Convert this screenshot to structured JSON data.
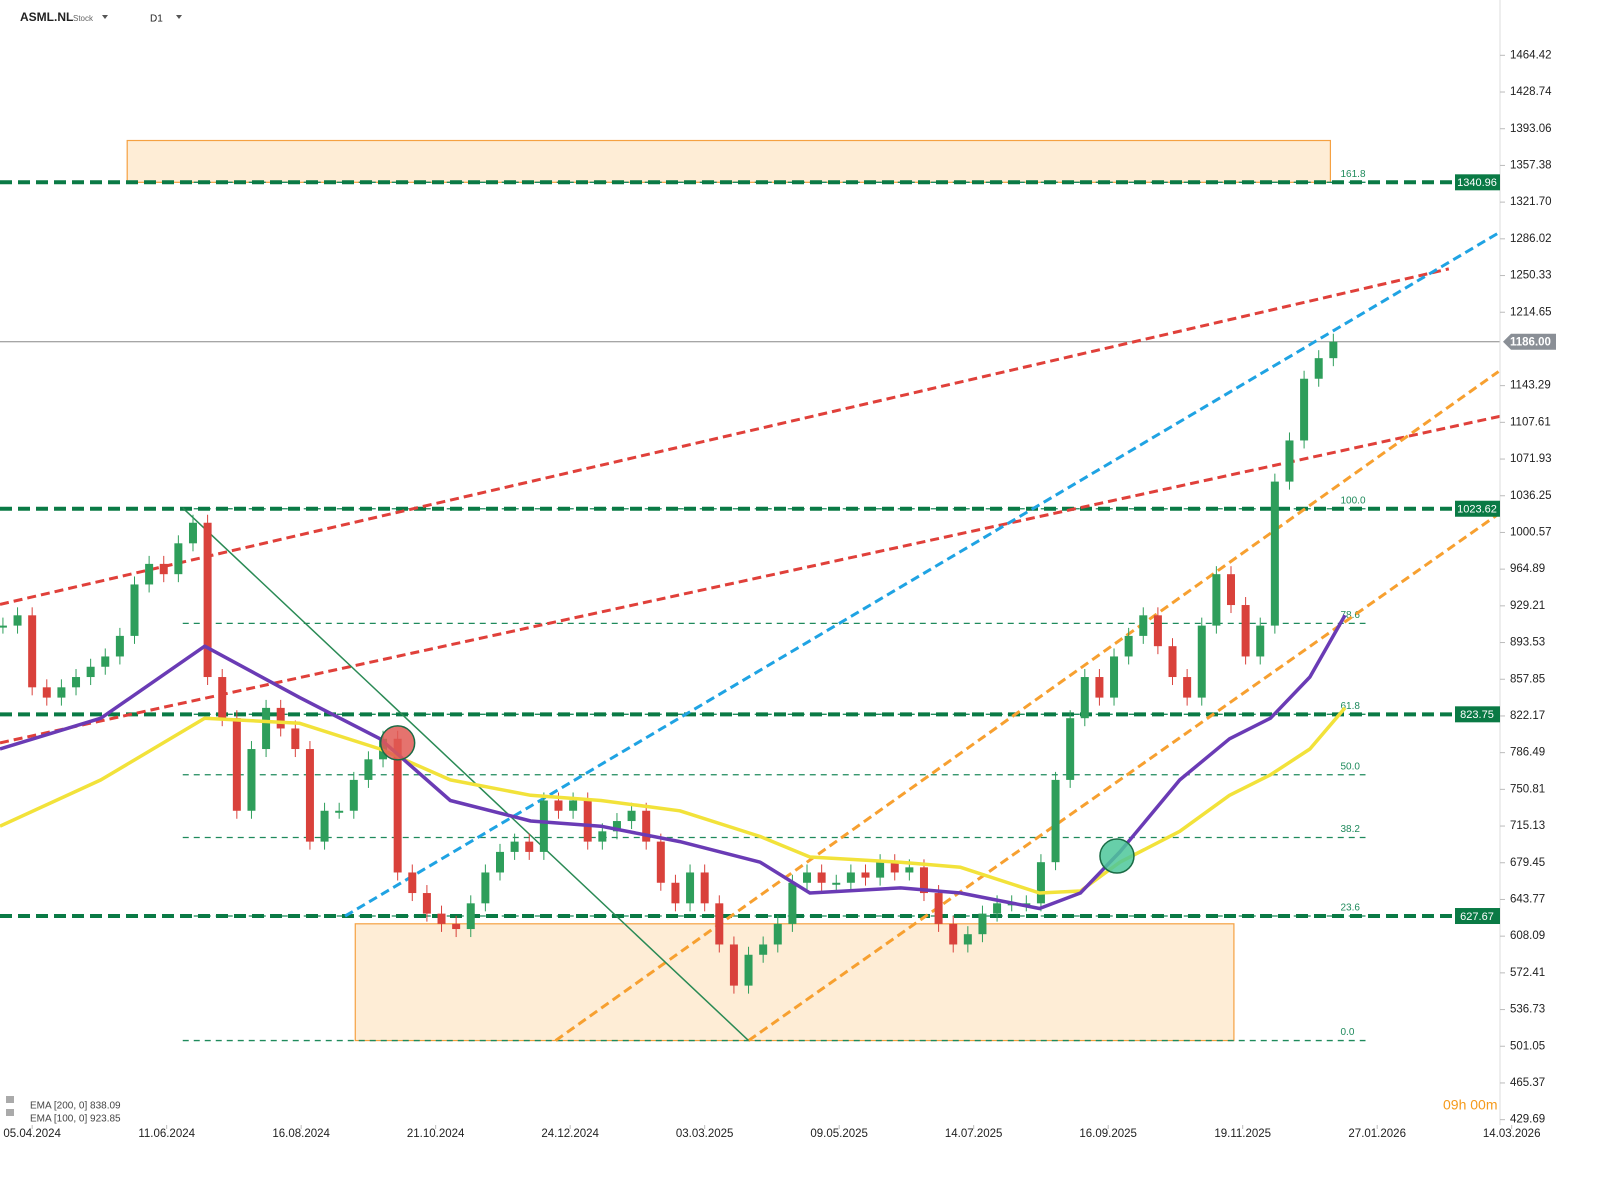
{
  "header": {
    "symbol": "ASML.NL",
    "kind": "Stock",
    "timeframe": "D1"
  },
  "countdown": "09h 00m",
  "chart_data": {
    "type": "candlestick",
    "x": [
      -2,
      -1,
      0,
      1,
      2,
      3,
      4,
      5,
      6,
      7,
      8,
      9,
      10,
      11,
      12,
      13,
      14,
      15,
      16,
      17,
      18,
      19,
      20,
      21,
      22,
      23,
      24,
      25,
      26,
      27,
      28,
      29,
      30,
      31,
      32,
      33,
      34,
      35,
      36,
      37,
      38,
      39,
      40,
      41,
      42,
      43,
      44,
      45,
      46,
      47,
      48,
      49,
      50,
      51,
      52,
      53,
      54,
      55,
      56,
      57,
      58,
      59,
      60,
      61,
      62,
      63,
      64,
      65,
      66,
      67,
      68,
      69,
      70,
      71,
      72,
      73,
      74,
      75,
      76,
      77,
      78,
      79,
      80,
      81,
      82,
      83,
      84,
      85,
      86,
      87,
      88,
      89
    ],
    "close": [
      910,
      920,
      850,
      840,
      850,
      860,
      870,
      880,
      900,
      950,
      970,
      960,
      990,
      1010,
      860,
      820,
      730,
      790,
      830,
      810,
      790,
      700,
      730,
      730,
      760,
      780,
      800,
      670,
      650,
      630,
      620,
      615,
      640,
      670,
      690,
      700,
      690,
      740,
      730,
      740,
      700,
      710,
      720,
      730,
      700,
      660,
      640,
      670,
      640,
      600,
      560,
      590,
      600,
      620,
      660,
      670,
      660,
      660,
      670,
      665,
      680,
      670,
      675,
      650,
      620,
      600,
      610,
      630,
      640,
      640,
      640,
      680,
      760,
      820,
      860,
      840,
      880,
      900,
      920,
      890,
      860,
      840,
      910,
      960,
      930,
      880,
      910,
      1050,
      1090,
      1150,
      1170,
      1186
    ],
    "up_color": "#2e9e5b",
    "down_color": "#d9413b",
    "overlays": [
      {
        "name": "EMA [200, 0] 838.09",
        "color": "#f2e23a",
        "x": [
          -2.2,
          4.7,
          11.8,
          18.3,
          23.8,
          28.6,
          34.1,
          38.9,
          44.3,
          49.8,
          53.2,
          59.4,
          63.5,
          68.9,
          71.7,
          74.4,
          78.5,
          81.9,
          84.7,
          87.4,
          89.8
        ],
        "values": [
          715,
          760,
          820,
          815,
          790,
          760,
          745,
          740,
          730,
          705,
          685,
          680,
          675,
          650,
          652,
          680,
          710,
          745,
          765,
          790,
          830
        ]
      },
      {
        "name": "EMA [100, 0] 923.85",
        "color": "#6a3bb5",
        "x": [
          -2.2,
          4.7,
          11.8,
          18.3,
          23.8,
          28.6,
          34.1,
          38.9,
          44.3,
          49.8,
          53.2,
          59.4,
          63.5,
          68.9,
          71.7,
          74.4,
          78.5,
          81.9,
          84.7,
          87.4,
          89.8
        ],
        "values": [
          790,
          820,
          890,
          840,
          800,
          740,
          720,
          715,
          700,
          680,
          650,
          655,
          650,
          635,
          650,
          690,
          760,
          800,
          820,
          860,
          920
        ]
      }
    ],
    "xlim": [
      -2.2,
      100.4
    ],
    "xticks": [
      {
        "value": 0,
        "label": "05.04.2024"
      },
      {
        "value": 9.2,
        "label": "11.06.2024"
      },
      {
        "value": 18.4,
        "label": "16.08.2024"
      },
      {
        "value": 27.6,
        "label": "21.10.2024"
      },
      {
        "value": 36.8,
        "label": "24.12.2024"
      },
      {
        "value": 46,
        "label": "03.03.2025"
      },
      {
        "value": 55.2,
        "label": "09.05.2025"
      },
      {
        "value": 64.4,
        "label": "14.07.2025"
      },
      {
        "value": 73.6,
        "label": "16.09.2025"
      },
      {
        "value": 82.8,
        "label": "19.11.2025"
      },
      {
        "value": 92,
        "label": "27.01.2026"
      },
      {
        "value": 101.2,
        "label": "14.03.2026"
      }
    ],
    "ylim": [
      424.5,
      1518.2
    ],
    "yticks": [
      1464.42,
      1428.74,
      1393.06,
      1357.38,
      {
        "value": 1321.7,
        "label": "1321.70"
      },
      1286.02,
      1250.33,
      1214.65,
      1143.29,
      1107.61,
      1071.93,
      1036.25,
      1000.57,
      964.89,
      929.21,
      893.53,
      857.85,
      822.17,
      786.49,
      750.81,
      715.13,
      679.45,
      643.77,
      608.09,
      572.41,
      536.73,
      501.05,
      465.37,
      429.69
    ],
    "current": {
      "value": 1186,
      "label": "1186.00"
    },
    "levels": [
      1340.96,
      1023.62,
      823.75,
      627.67
    ],
    "level_color": "#0a7a45",
    "fib_x": [
      10.3,
      91.2
    ],
    "fib": [
      {
        "label": "161.8",
        "value": 1340.96
      },
      {
        "label": "100.0",
        "value": 1023.62
      },
      {
        "label": "78.6",
        "value": 912.2
      },
      {
        "label": "61.8",
        "value": 823.75
      },
      {
        "label": "50.0",
        "value": 765
      },
      {
        "label": "38.2",
        "value": 704
      },
      {
        "label": "23.6",
        "value": 627.67
      },
      {
        "label": "0.0",
        "value": 506.6
      }
    ],
    "trendlines": [
      {
        "color": "#e0403a",
        "dash": true,
        "x": [
          -2.2,
          96.9
        ],
        "y": [
          930.6,
          1256.8
        ]
      },
      {
        "color": "#e0403a",
        "dash": true,
        "x": [
          -2.2,
          100.4
        ],
        "y": [
          796,
          1113.5
        ]
      },
      {
        "color": "#1fa3e3",
        "dash": true,
        "x": [
          21.4,
          100.4
        ],
        "y": [
          627.6,
          1292.6
        ]
      },
      {
        "color": "#f7a030",
        "dash": true,
        "x": [
          35.8,
          100.3
        ],
        "y": [
          506.6,
          1157
        ]
      },
      {
        "color": "#f7a030",
        "dash": true,
        "x": [
          49,
          100.4
        ],
        "y": [
          506.6,
          1019.5
        ]
      },
      {
        "color": "#2a8a55",
        "dash": false,
        "x": [
          10.3,
          49
        ],
        "y": [
          1024.4,
          506.6
        ]
      }
    ],
    "zones": [
      {
        "x": [
          6.5,
          88.8
        ],
        "y": [
          1340.96,
          1381.6
        ]
      },
      {
        "x": [
          22.1,
          82.2
        ],
        "y": [
          506.6,
          620.1
        ]
      }
    ],
    "markers": [
      {
        "x": 25,
        "y": 796,
        "color": "#e05a55"
      },
      {
        "x": 74.2,
        "y": 686,
        "color": "#4cc79a"
      }
    ]
  }
}
